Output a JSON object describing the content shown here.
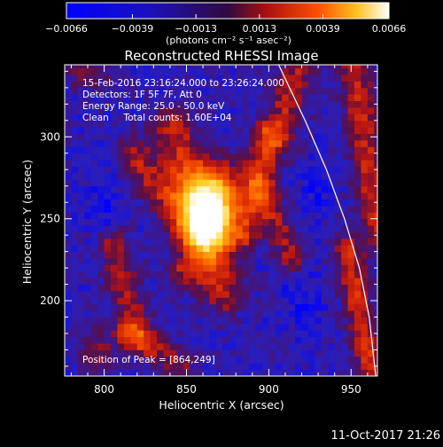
{
  "chart_data": {
    "type": "heatmap",
    "title": "Reconstructed RHESSI Image",
    "xlabel": "Heliocentric X (arcsec)",
    "ylabel": "Heliocentric Y (arcsec)",
    "xlim": [
      776,
      966
    ],
    "ylim": [
      154,
      344
    ],
    "x_ticks": [
      800,
      850,
      900,
      950
    ],
    "y_ticks": [
      200,
      250,
      300
    ],
    "colorbar": {
      "min": -0.0066,
      "max": 0.0066,
      "tick_values": [
        -0.0066,
        -0.0039,
        -0.0013,
        0.0013,
        0.0039,
        0.0066
      ],
      "tick_labels": [
        "−0.0066",
        "−0.0039",
        "−0.0013",
        "0.0013",
        "0.0039",
        "0.0066"
      ],
      "unit_label": "(photons cm⁻² s⁻¹ asec⁻²)"
    },
    "annotations": [
      "15-Feb-2016 23:16:24.000 to 23:26:24.000",
      "Detectors: 1F 5F 7F, Att 0",
      "Energy Range: 25.0 - 50.0 keV",
      "Clean     Total counts: 1.60E+04"
    ],
    "peak_label": "Position of Peak = [864,249]",
    "peak": [
      864,
      249
    ],
    "limb_curve": [
      [
        906,
        344
      ],
      [
        922,
        310
      ],
      [
        935,
        280
      ],
      [
        946,
        250
      ],
      [
        955,
        220
      ],
      [
        961,
        190
      ],
      [
        965,
        154
      ]
    ]
  },
  "footer": {
    "date": "11-Oct-2017 21:26"
  }
}
